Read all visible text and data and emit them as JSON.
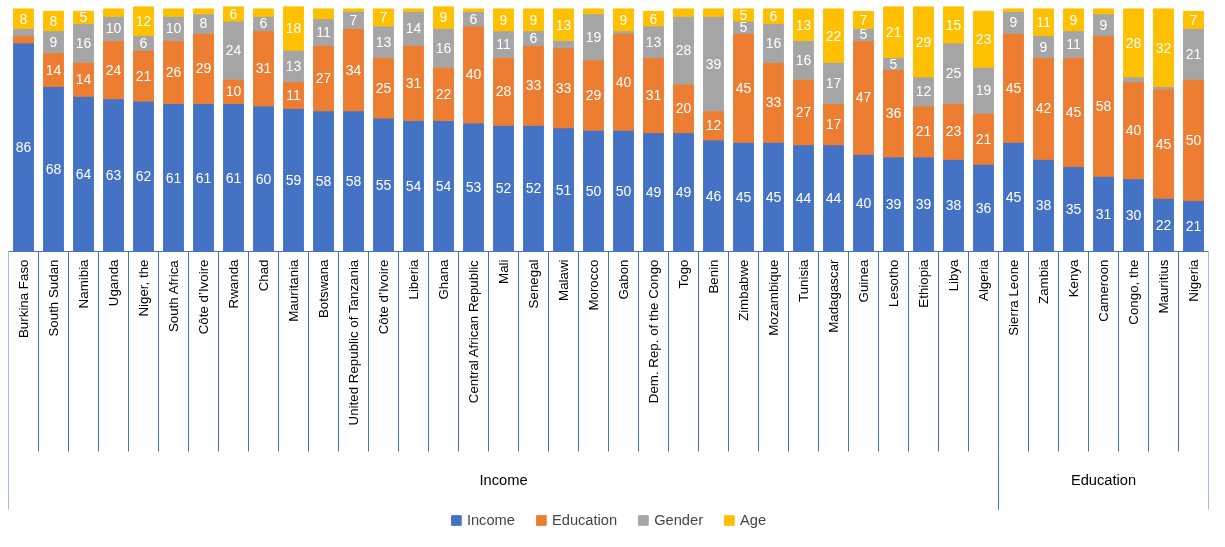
{
  "chart_data": {
    "type": "bar",
    "stacked": true,
    "legend": "bottom",
    "grid": false,
    "categories": [
      "Burkina Faso",
      "South Sudan",
      "Namibia",
      "Uganda",
      "Niger, the",
      "South Africa",
      "Côte d’Ivoire",
      "Rwanda",
      "Chad",
      "Mauritania",
      "Botswana",
      "United Republic of Tanzania",
      "Côte d’Ivoire",
      "Liberia",
      "Ghana",
      "Central African Republic",
      "Mali",
      "Senegal",
      "Malawi",
      "Morocco",
      "Gabon",
      "Dem. Rep. of the Congo",
      "Togo",
      "Benin",
      "Zimbabwe",
      "Mozambique",
      "Tunisia",
      "Madagascar",
      "Guinea",
      "Lesotho",
      "Ethiopia",
      "Libya",
      "Algeria",
      "Sierra Leone",
      "Zambia",
      "Kenya",
      "Cameroon",
      "Congo, the",
      "Mauritius",
      "Nigeria"
    ],
    "series": [
      {
        "name": "Income",
        "color": "#4472c4",
        "values": [
          86,
          68,
          64,
          63,
          62,
          61,
          61,
          61,
          60,
          59,
          58,
          58,
          55,
          54,
          54,
          53,
          52,
          52,
          51,
          50,
          50,
          49,
          49,
          46,
          45,
          45,
          44,
          44,
          40,
          39,
          39,
          38,
          36,
          45,
          38,
          35,
          31,
          30,
          22,
          21
        ],
        "value_labels": [
          "86",
          "68",
          "64",
          "63",
          "62",
          "61",
          "61",
          "61",
          "60",
          "59",
          "58",
          "58",
          "55",
          "54",
          "54",
          "53",
          "52",
          "52",
          "51",
          "50",
          "50",
          "49",
          "49",
          "46",
          "45",
          "45",
          "44",
          "44",
          "40",
          "39",
          "39",
          "38",
          "36",
          "45",
          "38",
          "35",
          "31",
          "30",
          "22",
          "21"
        ]
      },
      {
        "name": "Education",
        "color": "#ed7d31",
        "values": [
          3,
          14,
          14,
          24,
          21,
          26,
          29,
          10,
          31,
          11,
          27,
          34,
          25,
          31,
          22,
          40,
          28,
          33,
          33,
          29,
          40,
          31,
          20,
          12,
          45,
          33,
          27,
          17,
          47,
          36,
          21,
          23,
          21,
          45,
          42,
          45,
          58,
          40,
          45,
          50
        ],
        "value_labels": [
          null,
          "14",
          "14",
          "24",
          "21",
          "26",
          "29",
          "10",
          "31",
          "11",
          "27",
          "34",
          "25",
          "31",
          "22",
          "40",
          "28",
          "33",
          "33",
          "29",
          "40",
          "31",
          "20",
          "12",
          "45",
          "33",
          "27",
          "17",
          "47",
          "36",
          "21",
          "23",
          "21",
          "45",
          "42",
          "45",
          "58",
          "40",
          "45",
          "50"
        ]
      },
      {
        "name": "Gender",
        "color": "#a5a5a5",
        "values": [
          3,
          9,
          16,
          10,
          6,
          10,
          8,
          24,
          6,
          13,
          11,
          7,
          13,
          14,
          16,
          6,
          11,
          6,
          3,
          19,
          1,
          13,
          28,
          39,
          5,
          16,
          16,
          17,
          5,
          5,
          12,
          25,
          19,
          9,
          9,
          11,
          9,
          2,
          1,
          21
        ],
        "value_labels": [
          null,
          "9",
          "16",
          "10",
          "6",
          "10",
          "8",
          "24",
          "6",
          "13",
          "11",
          "7",
          "13",
          "14",
          "16",
          "6",
          "11",
          "6",
          null,
          "19",
          null,
          "13",
          "28",
          "39",
          "5",
          "16",
          "16",
          "17",
          "5",
          "5",
          "12",
          "25",
          "19",
          "9",
          "9",
          "11",
          "9",
          null,
          null,
          "21"
        ]
      },
      {
        "name": "Age",
        "color": "#ffc000",
        "values": [
          8,
          8,
          5,
          3,
          12,
          3,
          2,
          6,
          3,
          18,
          4,
          1,
          7,
          1,
          9,
          1,
          9,
          9,
          13,
          2,
          9,
          6,
          3,
          3,
          5,
          6,
          13,
          22,
          7,
          21,
          29,
          15,
          23,
          1,
          11,
          9,
          2,
          28,
          32,
          7
        ],
        "value_labels": [
          "8",
          "8",
          "5",
          null,
          "12",
          null,
          null,
          "6",
          null,
          "18",
          null,
          null,
          "7",
          null,
          "9",
          null,
          "9",
          "9",
          "13",
          null,
          "9",
          "6",
          null,
          null,
          "5",
          "6",
          "13",
          "22",
          "7",
          "21",
          "29",
          "15",
          "23",
          null,
          "11",
          "9",
          null,
          "28",
          "32",
          "7"
        ]
      }
    ],
    "annotations": [
      "Income",
      "Education"
    ]
  }
}
